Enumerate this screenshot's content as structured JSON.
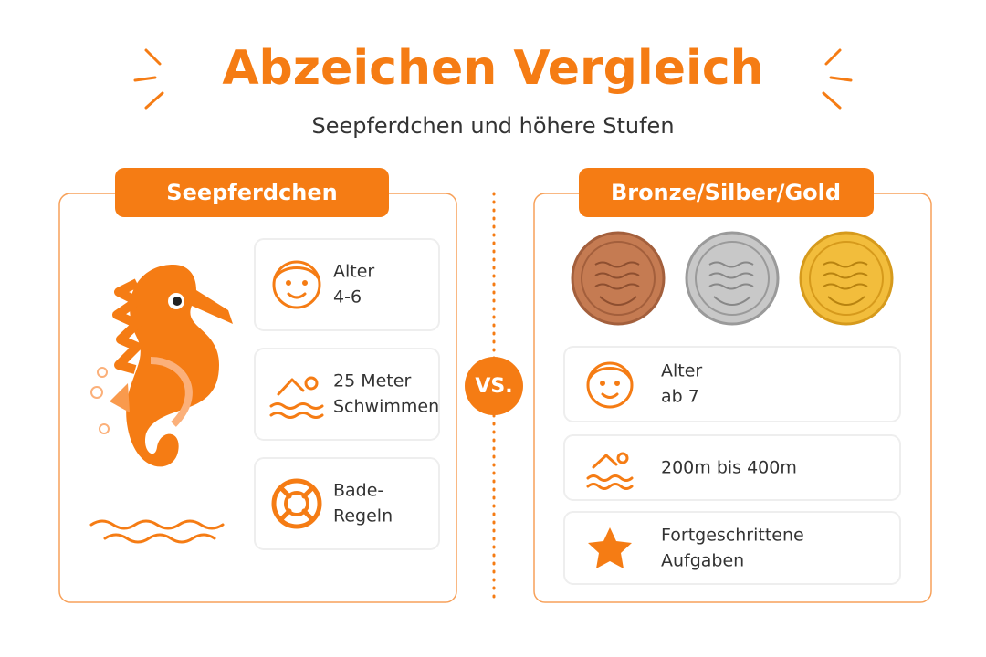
{
  "header": {
    "title": "Abzeichen Vergleich",
    "subtitle": "Seepferdchen und höhere Stufen"
  },
  "left": {
    "title": "Seepferdchen",
    "items": [
      {
        "lines": [
          "Alter",
          "4-6"
        ]
      },
      {
        "lines": [
          "25 Meter",
          "Schwimmen"
        ]
      },
      {
        "lines": [
          "Bade-",
          "Regeln"
        ]
      }
    ]
  },
  "vs": "VS.",
  "right": {
    "title": "Bronze/Silber/Gold",
    "items": [
      {
        "lines": [
          "Alter",
          "ab 7"
        ]
      },
      {
        "lines": [
          "200m bis 400m"
        ]
      },
      {
        "lines": [
          "Fortgeschrittene",
          "Aufgaben"
        ]
      }
    ]
  }
}
